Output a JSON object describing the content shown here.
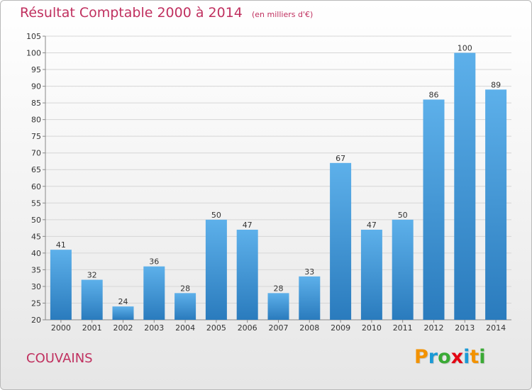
{
  "title": "Résultat Comptable 2000 à 2014",
  "subtitle": "(en milliers d'€)",
  "commune": "COUVAINS",
  "logo": {
    "text": "Proxiti",
    "colors": [
      "#f39200",
      "#1a9ad6",
      "#3aaa35",
      "#e30613",
      "#1a9ad6",
      "#f39200",
      "#3aaa35"
    ]
  },
  "colors": {
    "bar_top": "#5db0ea",
    "bar_bottom": "#2a7bbd",
    "grid": "#d6d6d6",
    "accent": "#c0305f"
  },
  "chart_data": {
    "type": "bar",
    "title": "Résultat Comptable 2000 à 2014",
    "xlabel": "",
    "ylabel": "",
    "categories": [
      "2000",
      "2001",
      "2002",
      "2003",
      "2004",
      "2005",
      "2006",
      "2007",
      "2008",
      "2009",
      "2010",
      "2011",
      "2012",
      "2013",
      "2014"
    ],
    "values": [
      41,
      32,
      24,
      36,
      28,
      50,
      47,
      28,
      33,
      67,
      47,
      50,
      86,
      100,
      89
    ],
    "ylim": [
      20,
      105
    ],
    "yticks": [
      20,
      25,
      30,
      35,
      40,
      45,
      50,
      55,
      60,
      65,
      70,
      75,
      80,
      85,
      90,
      95,
      100,
      105
    ],
    "grid": true,
    "data_labels": true
  }
}
